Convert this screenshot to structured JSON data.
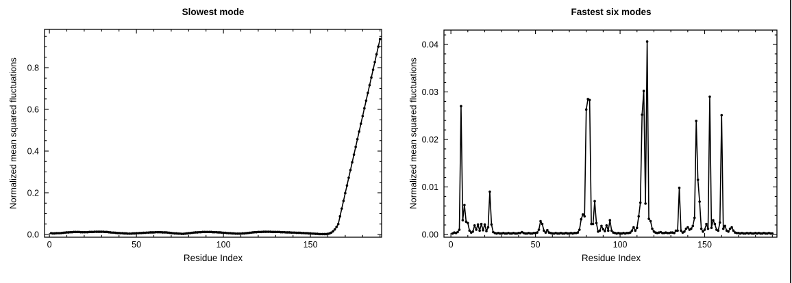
{
  "page": {
    "background": "#ffffff",
    "right_border_color": "#2e2e2e",
    "plot_line_color": "#000000",
    "frame_color": "#000000"
  },
  "chart_data": [
    {
      "id": "slowest-mode",
      "type": "line",
      "title": "Slowest mode",
      "xlabel": "Residue Index",
      "ylabel": "Normalized mean squared fluctuations",
      "legend": "none",
      "grid": false,
      "marker": "filled-circle",
      "series_color": "#000000",
      "x_start": 1,
      "xlim": [
        -2.8,
        190.9
      ],
      "ylim": [
        -0.0131,
        0.9836
      ],
      "x_ticks": {
        "major": [
          {
            "v": 0,
            "label": "0"
          },
          {
            "v": 50,
            "label": "50"
          },
          {
            "v": 100,
            "label": "100"
          },
          {
            "v": 150,
            "label": "150"
          }
        ],
        "minor_step": 10
      },
      "y_ticks": {
        "major": [
          {
            "v": 0,
            "label": "0.0"
          },
          {
            "v": 0.2,
            "label": "0.2"
          },
          {
            "v": 0.4,
            "label": "0.4"
          },
          {
            "v": 0.6,
            "label": "0.6"
          },
          {
            "v": 0.8,
            "label": "0.8"
          }
        ],
        "minor_step": 0.05
      },
      "values": [
        0.006,
        0.005,
        0.005,
        0.006,
        0.006,
        0.006,
        0.007,
        0.008,
        0.009,
        0.01,
        0.01,
        0.011,
        0.011,
        0.012,
        0.012,
        0.012,
        0.012,
        0.011,
        0.011,
        0.011,
        0.011,
        0.011,
        0.012,
        0.012,
        0.012,
        0.013,
        0.013,
        0.013,
        0.013,
        0.013,
        0.013,
        0.012,
        0.012,
        0.011,
        0.01,
        0.009,
        0.009,
        0.008,
        0.007,
        0.007,
        0.006,
        0.006,
        0.005,
        0.005,
        0.004,
        0.004,
        0.004,
        0.005,
        0.005,
        0.006,
        0.006,
        0.007,
        0.007,
        0.008,
        0.008,
        0.009,
        0.009,
        0.01,
        0.01,
        0.01,
        0.011,
        0.011,
        0.011,
        0.011,
        0.01,
        0.01,
        0.01,
        0.009,
        0.008,
        0.007,
        0.006,
        0.005,
        0.005,
        0.004,
        0.004,
        0.003,
        0.003,
        0.004,
        0.005,
        0.006,
        0.007,
        0.008,
        0.009,
        0.01,
        0.01,
        0.011,
        0.011,
        0.012,
        0.012,
        0.012,
        0.012,
        0.012,
        0.012,
        0.011,
        0.011,
        0.011,
        0.01,
        0.01,
        0.009,
        0.008,
        0.008,
        0.007,
        0.006,
        0.006,
        0.005,
        0.005,
        0.004,
        0.004,
        0.004,
        0.004,
        0.005,
        0.005,
        0.006,
        0.007,
        0.008,
        0.009,
        0.01,
        0.011,
        0.011,
        0.012,
        0.012,
        0.012,
        0.013,
        0.013,
        0.013,
        0.013,
        0.013,
        0.012,
        0.012,
        0.012,
        0.012,
        0.012,
        0.011,
        0.011,
        0.011,
        0.01,
        0.01,
        0.01,
        0.009,
        0.009,
        0.009,
        0.008,
        0.008,
        0.008,
        0.007,
        0.007,
        0.006,
        0.006,
        0.005,
        0.005,
        0.004,
        0.004,
        0.003,
        0.003,
        0.002,
        0.002,
        0.002,
        0.002,
        0.002,
        0.003,
        0.005,
        0.009,
        0.015,
        0.024,
        0.036,
        0.05,
        0.087,
        0.124,
        0.161,
        0.198,
        0.235,
        0.272,
        0.309,
        0.346,
        0.383,
        0.42,
        0.457,
        0.494,
        0.531,
        0.568,
        0.605,
        0.642,
        0.679,
        0.716,
        0.753,
        0.79,
        0.827,
        0.864,
        0.901,
        0.937
      ]
    },
    {
      "id": "fastest-six-modes",
      "type": "line",
      "title": "Fastest six modes",
      "xlabel": "Residue Index",
      "ylabel": "Normalized mean squared fluctuations",
      "legend": "none",
      "grid": false,
      "marker": "filled-circle",
      "series_color": "#000000",
      "x_start": 1,
      "xlim": [
        -4.1,
        192.7
      ],
      "ylim": [
        -0.00058,
        0.04302
      ],
      "x_ticks": {
        "major": [
          {
            "v": 0,
            "label": "0"
          },
          {
            "v": 50,
            "label": "50"
          },
          {
            "v": 100,
            "label": "100"
          },
          {
            "v": 150,
            "label": "150"
          }
        ],
        "minor_step": 10
      },
      "y_ticks": {
        "major": [
          {
            "v": 0,
            "label": "0.00"
          },
          {
            "v": 0.01,
            "label": "0.01"
          },
          {
            "v": 0.02,
            "label": "0.02"
          },
          {
            "v": 0.03,
            "label": "0.03"
          },
          {
            "v": 0.04,
            "label": "0.04"
          }
        ],
        "minor_step": 0.002
      },
      "values": [
        0.0002,
        0.0004,
        0.0003,
        0.0005,
        0.001,
        0.027,
        0.003,
        0.0062,
        0.0027,
        0.0024,
        0.0008,
        0.0004,
        0.0006,
        0.0019,
        0.001,
        0.0021,
        0.0008,
        0.0022,
        0.0009,
        0.0021,
        0.0007,
        0.0015,
        0.009,
        0.0021,
        0.0005,
        0.0003,
        0.0002,
        0.0003,
        0.0002,
        0.0002,
        0.0003,
        0.0002,
        0.0002,
        0.0003,
        0.0002,
        0.0002,
        0.0003,
        0.0002,
        0.0002,
        0.0003,
        0.0003,
        0.0005,
        0.0003,
        0.0002,
        0.0002,
        0.0003,
        0.0002,
        0.0002,
        0.0003,
        0.0003,
        0.0004,
        0.001,
        0.0028,
        0.0022,
        0.0008,
        0.0004,
        0.0009,
        0.0004,
        0.0003,
        0.0002,
        0.0002,
        0.0003,
        0.0002,
        0.0002,
        0.0003,
        0.0002,
        0.0002,
        0.0003,
        0.0002,
        0.0002,
        0.0003,
        0.0002,
        0.0003,
        0.0003,
        0.0004,
        0.001,
        0.0032,
        0.0042,
        0.0038,
        0.0263,
        0.0285,
        0.0283,
        0.0022,
        0.0022,
        0.007,
        0.0024,
        0.0006,
        0.0008,
        0.0018,
        0.0011,
        0.0007,
        0.0019,
        0.0008,
        0.003,
        0.0008,
        0.0004,
        0.0003,
        0.0002,
        0.0003,
        0.0002,
        0.0002,
        0.0003,
        0.0002,
        0.0003,
        0.0003,
        0.0004,
        0.0008,
        0.0015,
        0.0008,
        0.0014,
        0.0038,
        0.0067,
        0.0252,
        0.0302,
        0.0065,
        0.0406,
        0.0033,
        0.0028,
        0.0012,
        0.0006,
        0.0004,
        0.0003,
        0.0004,
        0.0005,
        0.0003,
        0.0003,
        0.0004,
        0.0003,
        0.0003,
        0.0004,
        0.0004,
        0.0003,
        0.0008,
        0.0008,
        0.0098,
        0.0008,
        0.0004,
        0.0006,
        0.0012,
        0.0015,
        0.001,
        0.0012,
        0.0018,
        0.0035,
        0.0239,
        0.0115,
        0.0069,
        0.0012,
        0.0006,
        0.001,
        0.0022,
        0.0012,
        0.029,
        0.0014,
        0.003,
        0.0022,
        0.001,
        0.0008,
        0.0025,
        0.0251,
        0.0012,
        0.0018,
        0.0008,
        0.0006,
        0.0012,
        0.0015,
        0.0008,
        0.0004,
        0.0003,
        0.0003,
        0.0002,
        0.0003,
        0.0002,
        0.0002,
        0.0003,
        0.0002,
        0.0003,
        0.0002,
        0.0002,
        0.0003,
        0.0002,
        0.0003,
        0.0002,
        0.0002,
        0.0003,
        0.0002,
        0.0002,
        0.0003,
        0.0002,
        0.0002
      ]
    }
  ]
}
